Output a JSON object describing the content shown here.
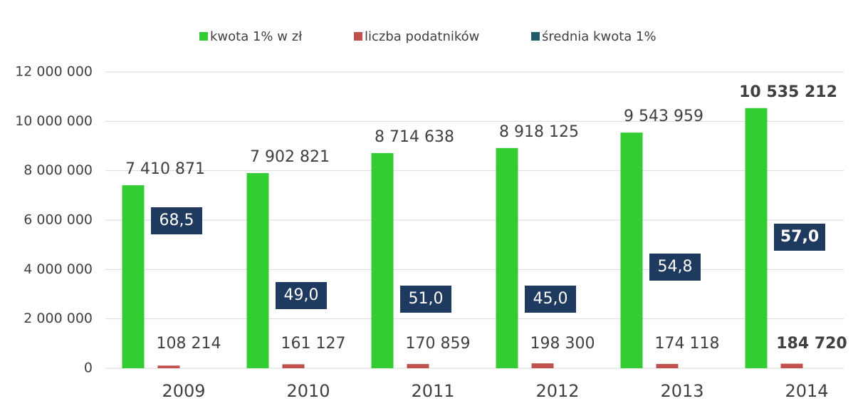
{
  "chart_data": {
    "type": "bar",
    "categories": [
      "2009",
      "2010",
      "2011",
      "2012",
      "2013",
      "2014"
    ],
    "series": [
      {
        "name": "kwota 1% w zł",
        "color": "#33cc33",
        "values": [
          7410871,
          7902821,
          8714638,
          8918125,
          9543959,
          10535212
        ],
        "value_labels": [
          "7 410 871",
          "7 902 821",
          "8 714 638",
          "8 918 125",
          "9 543 959",
          "10 535 212"
        ]
      },
      {
        "name": "liczba podatników",
        "color": "#c0504d",
        "values": [
          108214,
          161127,
          170859,
          198300,
          174118,
          184720
        ],
        "value_labels": [
          "108 214",
          "161 127",
          "170 859",
          "198 300",
          "174 118",
          "184 720"
        ]
      },
      {
        "name": "średnia kwota 1%",
        "color": "#1e5a6a",
        "values": [
          68.5,
          49.0,
          51.0,
          45.0,
          54.8,
          57.0
        ],
        "value_labels": [
          "68,5",
          "49,0",
          "51,0",
          "45,0",
          "54,8",
          "57,0"
        ]
      }
    ],
    "ylim": [
      0,
      12000000
    ],
    "yticks": [
      0,
      {
        "value": 2000000,
        "label": "2 000 000"
      },
      {
        "value": 4000000,
        "label": "4 000 000"
      },
      {
        "value": 6000000,
        "label": "6 000 000"
      },
      {
        "value": 8000000,
        "label": "8 000 000"
      },
      {
        "value": 10000000,
        "label": "10 000 000"
      },
      {
        "value": 12000000,
        "label": "12 000 000"
      }
    ],
    "grid": true,
    "legend": "top"
  }
}
